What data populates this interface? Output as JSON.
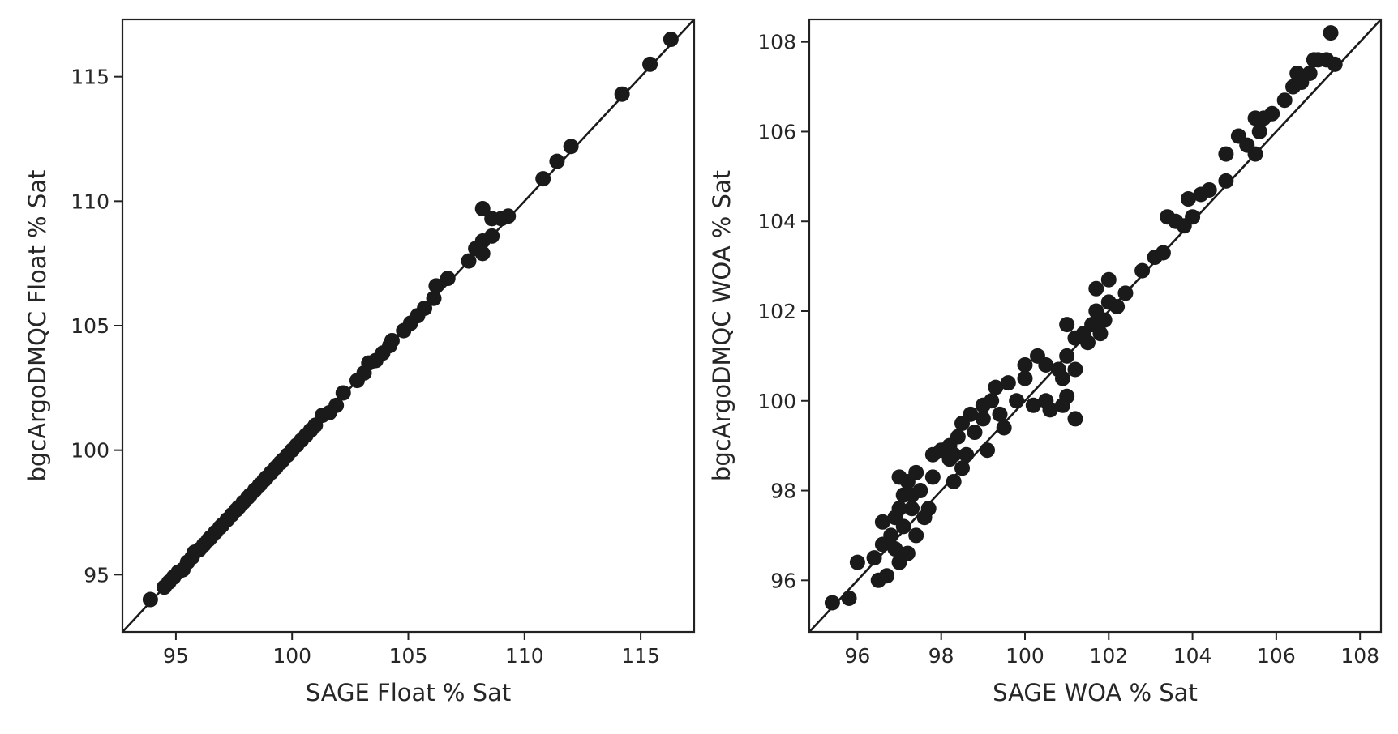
{
  "colors": {
    "marker": "#1a1a1a",
    "axis": "#222222",
    "text": "#262626",
    "background": "#ffffff"
  },
  "chart_data": [
    {
      "type": "scatter",
      "xlabel": "SAGE Float % Sat",
      "ylabel": "bgcArgoDMQC Float % Sat",
      "xlim": [
        92.7,
        117.3
      ],
      "ylim": [
        92.7,
        117.3
      ],
      "xticks": [
        95,
        100,
        105,
        110,
        115
      ],
      "yticks": [
        95,
        100,
        105,
        110,
        115
      ],
      "reference_line": "y = x",
      "grid": false,
      "points": [
        [
          93.9,
          94.0
        ],
        [
          94.5,
          94.5
        ],
        [
          94.7,
          94.7
        ],
        [
          94.9,
          94.9
        ],
        [
          95.1,
          95.1
        ],
        [
          95.3,
          95.2
        ],
        [
          95.5,
          95.5
        ],
        [
          95.7,
          95.7
        ],
        [
          95.8,
          95.9
        ],
        [
          96.0,
          96.0
        ],
        [
          96.2,
          96.2
        ],
        [
          96.4,
          96.4
        ],
        [
          96.5,
          96.5
        ],
        [
          96.7,
          96.7
        ],
        [
          96.9,
          96.9
        ],
        [
          97.0,
          97.0
        ],
        [
          97.2,
          97.2
        ],
        [
          97.4,
          97.4
        ],
        [
          97.6,
          97.6
        ],
        [
          97.7,
          97.7
        ],
        [
          97.9,
          97.9
        ],
        [
          98.1,
          98.1
        ],
        [
          98.2,
          98.2
        ],
        [
          98.4,
          98.4
        ],
        [
          98.6,
          98.6
        ],
        [
          98.8,
          98.8
        ],
        [
          98.9,
          98.9
        ],
        [
          99.1,
          99.1
        ],
        [
          99.3,
          99.3
        ],
        [
          99.5,
          99.5
        ],
        [
          99.6,
          99.6
        ],
        [
          99.8,
          99.8
        ],
        [
          100.0,
          100.0
        ],
        [
          100.2,
          100.2
        ],
        [
          100.4,
          100.4
        ],
        [
          100.6,
          100.6
        ],
        [
          100.8,
          100.8
        ],
        [
          101.0,
          101.0
        ],
        [
          101.3,
          101.4
        ],
        [
          101.6,
          101.5
        ],
        [
          101.9,
          101.8
        ],
        [
          102.2,
          102.3
        ],
        [
          102.8,
          102.8
        ],
        [
          103.1,
          103.1
        ],
        [
          103.3,
          103.5
        ],
        [
          103.6,
          103.6
        ],
        [
          103.9,
          103.9
        ],
        [
          104.2,
          104.2
        ],
        [
          104.3,
          104.4
        ],
        [
          104.8,
          104.8
        ],
        [
          105.1,
          105.1
        ],
        [
          105.4,
          105.4
        ],
        [
          105.7,
          105.7
        ],
        [
          106.1,
          106.1
        ],
        [
          106.2,
          106.6
        ],
        [
          106.7,
          106.9
        ],
        [
          107.6,
          107.6
        ],
        [
          107.9,
          108.1
        ],
        [
          108.2,
          107.9
        ],
        [
          108.2,
          108.4
        ],
        [
          108.2,
          109.7
        ],
        [
          108.6,
          108.6
        ],
        [
          108.6,
          109.3
        ],
        [
          109.0,
          109.3
        ],
        [
          109.3,
          109.4
        ],
        [
          110.8,
          110.9
        ],
        [
          111.4,
          111.6
        ],
        [
          112.0,
          112.2
        ],
        [
          114.2,
          114.3
        ],
        [
          115.4,
          115.5
        ],
        [
          116.3,
          116.5
        ]
      ]
    },
    {
      "type": "scatter",
      "xlabel": "SAGE WOA % Sat",
      "ylabel": "bgcArgoDMQC WOA % Sat",
      "xlim": [
        94.85,
        108.5
      ],
      "ylim": [
        94.85,
        108.5
      ],
      "xticks": [
        96,
        98,
        100,
        102,
        104,
        106,
        108
      ],
      "yticks": [
        96,
        98,
        100,
        102,
        104,
        106,
        108
      ],
      "reference_line": "y = x",
      "grid": false,
      "points": [
        [
          95.4,
          95.5
        ],
        [
          95.8,
          95.6
        ],
        [
          96.0,
          96.4
        ],
        [
          96.4,
          96.5
        ],
        [
          96.5,
          96.0
        ],
        [
          96.6,
          97.3
        ],
        [
          96.7,
          96.1
        ],
        [
          96.6,
          96.8
        ],
        [
          96.8,
          97.0
        ],
        [
          96.9,
          96.7
        ],
        [
          96.9,
          97.4
        ],
        [
          97.0,
          96.4
        ],
        [
          97.0,
          97.6
        ],
        [
          97.0,
          98.3
        ],
        [
          97.1,
          97.2
        ],
        [
          97.1,
          97.9
        ],
        [
          97.2,
          96.6
        ],
        [
          97.2,
          98.2
        ],
        [
          97.3,
          97.6
        ],
        [
          97.3,
          97.9
        ],
        [
          97.4,
          98.4
        ],
        [
          97.4,
          97.0
        ],
        [
          97.5,
          98.0
        ],
        [
          97.6,
          97.4
        ],
        [
          97.7,
          97.6
        ],
        [
          97.8,
          98.3
        ],
        [
          97.8,
          98.8
        ],
        [
          98.0,
          98.9
        ],
        [
          98.2,
          98.7
        ],
        [
          98.2,
          99.0
        ],
        [
          98.3,
          98.2
        ],
        [
          98.3,
          98.8
        ],
        [
          98.4,
          99.2
        ],
        [
          98.5,
          98.5
        ],
        [
          98.5,
          99.5
        ],
        [
          98.6,
          98.8
        ],
        [
          98.7,
          99.7
        ],
        [
          98.8,
          99.3
        ],
        [
          99.0,
          99.9
        ],
        [
          99.0,
          99.6
        ],
        [
          99.1,
          98.9
        ],
        [
          99.2,
          100.0
        ],
        [
          99.3,
          100.3
        ],
        [
          99.4,
          99.7
        ],
        [
          99.5,
          99.4
        ],
        [
          99.6,
          100.4
        ],
        [
          99.8,
          100.0
        ],
        [
          100.0,
          100.5
        ],
        [
          100.0,
          100.8
        ],
        [
          100.2,
          99.9
        ],
        [
          100.3,
          101.0
        ],
        [
          100.5,
          100.8
        ],
        [
          100.5,
          100.0
        ],
        [
          100.6,
          99.8
        ],
        [
          100.8,
          100.7
        ],
        [
          100.9,
          100.5
        ],
        [
          100.9,
          99.9
        ],
        [
          101.0,
          101.0
        ],
        [
          101.0,
          101.7
        ],
        [
          101.0,
          100.1
        ],
        [
          101.2,
          101.4
        ],
        [
          101.2,
          99.6
        ],
        [
          101.2,
          100.7
        ],
        [
          101.4,
          101.5
        ],
        [
          101.5,
          101.3
        ],
        [
          101.6,
          101.7
        ],
        [
          101.7,
          102.5
        ],
        [
          101.7,
          102.0
        ],
        [
          101.8,
          101.5
        ],
        [
          101.9,
          101.8
        ],
        [
          102.0,
          102.2
        ],
        [
          102.0,
          102.7
        ],
        [
          102.2,
          102.1
        ],
        [
          102.4,
          102.4
        ],
        [
          102.8,
          102.9
        ],
        [
          103.1,
          103.2
        ],
        [
          103.3,
          103.3
        ],
        [
          103.4,
          104.1
        ],
        [
          103.6,
          104.0
        ],
        [
          103.8,
          103.9
        ],
        [
          103.9,
          104.5
        ],
        [
          104.0,
          104.1
        ],
        [
          104.2,
          104.6
        ],
        [
          104.4,
          104.7
        ],
        [
          104.8,
          104.9
        ],
        [
          104.8,
          105.5
        ],
        [
          105.1,
          105.9
        ],
        [
          105.3,
          105.7
        ],
        [
          105.5,
          105.5
        ],
        [
          105.5,
          106.3
        ],
        [
          105.6,
          106.0
        ],
        [
          105.7,
          106.3
        ],
        [
          105.9,
          106.4
        ],
        [
          106.2,
          106.7
        ],
        [
          106.4,
          107.0
        ],
        [
          106.5,
          107.3
        ],
        [
          106.6,
          107.1
        ],
        [
          106.8,
          107.3
        ],
        [
          106.9,
          107.6
        ],
        [
          107.0,
          107.6
        ],
        [
          107.2,
          107.6
        ],
        [
          107.3,
          108.2
        ],
        [
          107.4,
          107.5
        ]
      ]
    }
  ]
}
